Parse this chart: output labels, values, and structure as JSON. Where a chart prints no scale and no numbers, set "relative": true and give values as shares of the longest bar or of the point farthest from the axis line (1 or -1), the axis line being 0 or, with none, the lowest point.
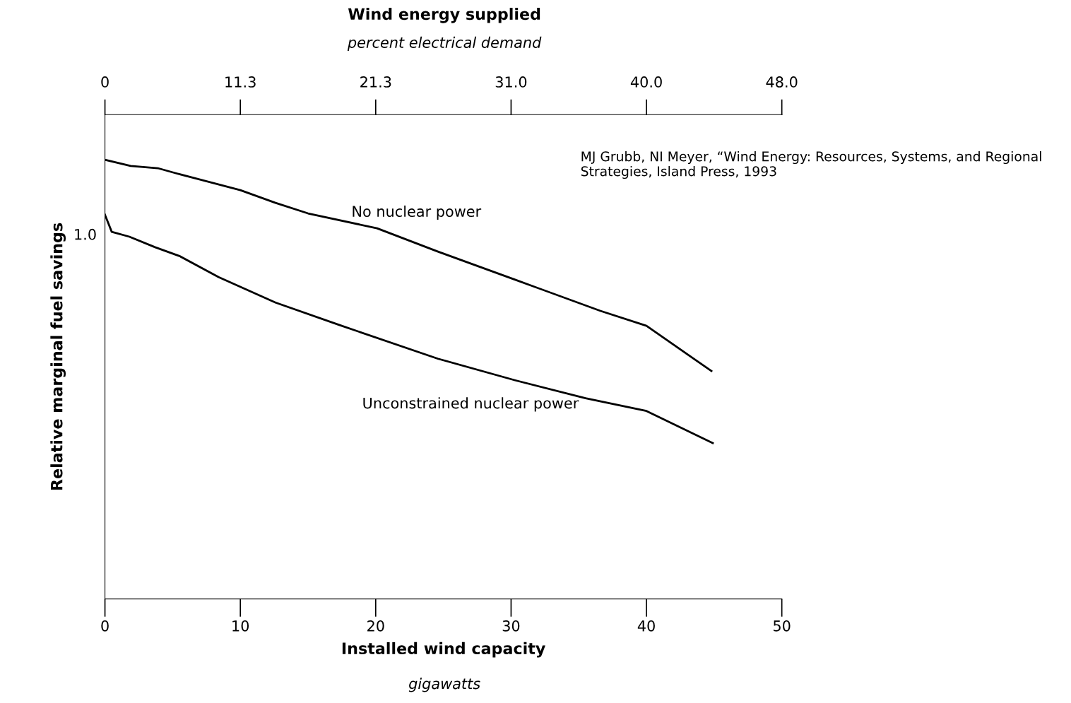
{
  "chart_data": {
    "type": "line",
    "relative": true,
    "title": "Wind energy supplied",
    "subtitle": "percent electrical demand",
    "xlabel": "Installed wind capacity\ngigawatts",
    "ylabel": "Relative marginal fuel savings",
    "xlim": [
      0,
      50
    ],
    "xticks": [
      0,
      10,
      20,
      30,
      40,
      50
    ],
    "series": [
      {
        "name": "No nuclear power",
        "color": "#000000",
        "x": [
          0,
          1.9,
          3.9,
          5.3,
          10.0,
          12.6,
          15.0,
          20.1,
          24.6,
          30.3,
          36.6,
          40.0,
          44.8
        ],
        "values": [
          1.0,
          0.986,
          0.981,
          0.969,
          0.931,
          0.902,
          0.878,
          0.844,
          0.791,
          0.727,
          0.656,
          0.622,
          0.519
        ]
      },
      {
        "name": "Unconstrained nuclear power",
        "color": "#000000",
        "x": [
          0,
          0.5,
          1.8,
          3.7,
          5.5,
          8.4,
          12.6,
          17.3,
          24.6,
          30.3,
          35.5,
          40.0,
          44.9
        ],
        "values": [
          0.875,
          0.836,
          0.825,
          0.801,
          0.781,
          0.733,
          0.675,
          0.624,
          0.547,
          0.498,
          0.457,
          0.428,
          0.355
        ]
      }
    ],
    "annotations": [
      "1.0",
      "MJ Grubb, NI Meyer, “Wind Energy: Resources, Systems, and Regional Strategies, Island Press, 1993",
      "0",
      "11.3",
      "21.3",
      "31.0",
      "40.0",
      "48.0"
    ],
    "grid": false
  }
}
